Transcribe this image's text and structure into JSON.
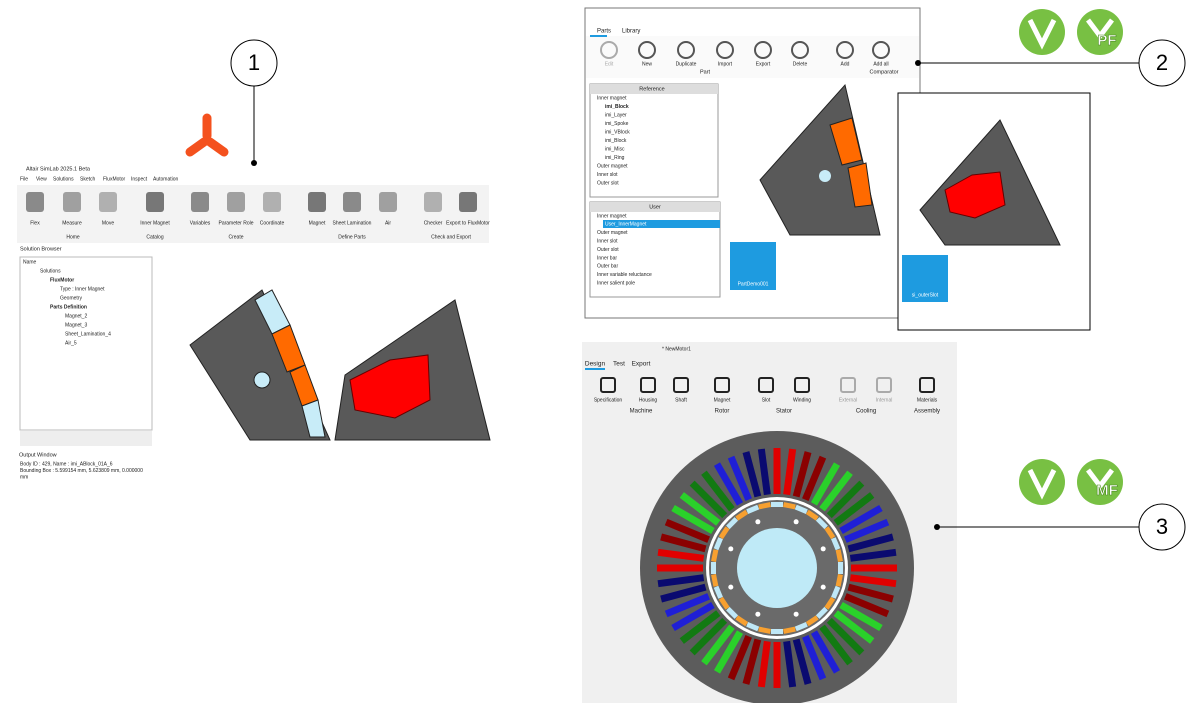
{
  "callouts": [
    "1",
    "2",
    "3"
  ],
  "logos": [
    "PF",
    "MF"
  ],
  "simlab": {
    "title": "Altair SimLab 2025.1 Beta",
    "menu": [
      "File",
      "View",
      "Solutions",
      "Sketch",
      "FluxMotor",
      "Inspect",
      "Automation"
    ],
    "ribbon": [
      "Flex",
      "Measure",
      "Move",
      "Inner Magnet",
      "Variables",
      "Parameter Role",
      "Coordinate",
      "Magnet",
      "Sheet Lamination",
      "Air",
      "Checker",
      "Export to FluxMotor"
    ],
    "groups": [
      "Home",
      "Catalog",
      "Create",
      "Define Parts",
      "Check and Export"
    ],
    "browser_title": "Solution Browser",
    "tree_header": "Name",
    "tree": [
      "Solutions",
      "FluxMotor",
      "Type : Inner Magnet",
      "Geometry",
      "Parts Definition",
      "Magnet_2",
      "Magnet_3",
      "Sheet_Lamination_4",
      "Air_5"
    ],
    "output_title": "Output Window",
    "output": [
      "Body ID : 429, Name : imi_ABlock_01A_6",
      "Bounding Box : 5.599154 mm, 5.623809 mm, 0.000000",
      "mm"
    ]
  },
  "fluxmotor": {
    "tabs": [
      "Parts",
      "Library"
    ],
    "buttons": [
      "Edit",
      "New",
      "Duplicate",
      "Import",
      "Export",
      "Delete",
      "Add",
      "Add all"
    ],
    "groups": [
      "Part",
      "Comparator"
    ],
    "reference_title": "Reference",
    "reference": [
      "Inner magnet",
      "imi_Block",
      "imi_Layer",
      "imi_Spoke",
      "imi_VBlock",
      "imi_Block",
      "imi_Misc",
      "imi_Ring",
      "Outer magnet",
      "Inner slot",
      "Outer slot"
    ],
    "user_title": "User",
    "user": [
      "Inner magnet",
      "User_InnerMagnet",
      "Outer magnet",
      "Inner slot",
      "Outer slot",
      "Inner bar",
      "Outer bar",
      "Inner variable reluctance",
      "Inner salient pole"
    ],
    "thumbnails": [
      "PartDemo001",
      "si_outerSlot"
    ]
  },
  "motorfactory": {
    "document": "* NewMotor1",
    "tabs": [
      "Design",
      "Test",
      "Export"
    ],
    "buttons": [
      "Specification",
      "Housing",
      "Shaft",
      "Magnet",
      "Slot",
      "Winding",
      "External",
      "Internal",
      "Materials"
    ],
    "groups": [
      "Machine",
      "Rotor",
      "Stator",
      "Cooling",
      "Assembly"
    ]
  }
}
